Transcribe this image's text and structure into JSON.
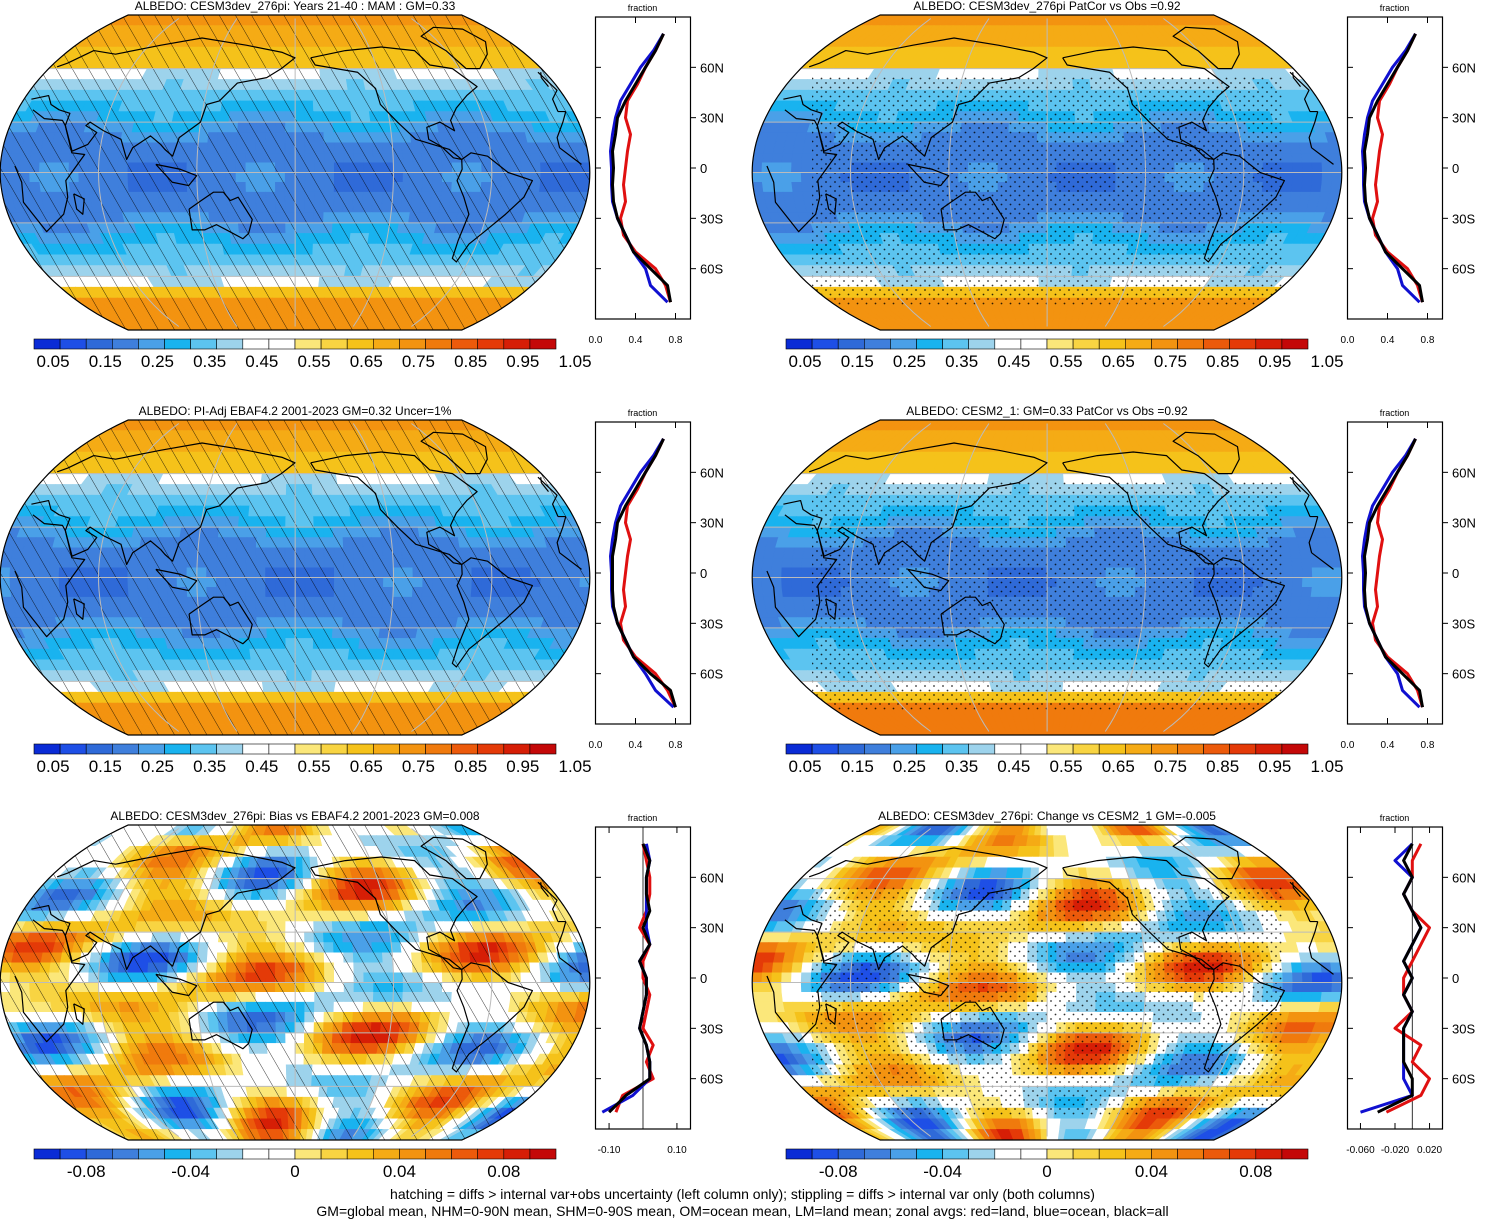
{
  "variable": "ALBEDO",
  "colors": {
    "abs": [
      "#0a2bd6",
      "#1e4fe6",
      "#2f6ad8",
      "#3f7fdc",
      "#4aa0e8",
      "#19b3ef",
      "#5cc4f0",
      "#9dd3ec",
      "#ffffff",
      "#ffffff",
      "#fbe77a",
      "#f8d442",
      "#f5c21a",
      "#f5ab15",
      "#f39310",
      "#f07a0d",
      "#ec5a0b",
      "#e43a08",
      "#d61e06",
      "#c40808"
    ],
    "diff": [
      "#0a2bd6",
      "#1e4fe6",
      "#2f6ad8",
      "#3f7fdc",
      "#4aa0e8",
      "#19b3ef",
      "#5cc4f0",
      "#9dd3ec",
      "#ffffff",
      "#ffffff",
      "#fbe77a",
      "#f8d442",
      "#f5c21a",
      "#f5ab15",
      "#f39310",
      "#f07a0d",
      "#ec5a0b",
      "#e43a08",
      "#d61e06",
      "#c40808"
    ],
    "land_line": "#e01010",
    "ocean_line": "#1010d0",
    "all_line": "#000000"
  },
  "panels": [
    {
      "title": "ALBEDO: CESM3dev_276pi: Years 21-40 : MAM : GM=0.33",
      "overlay": "hatch",
      "kind": "abs",
      "cb_labels": [
        "0.05",
        "0.15",
        "0.25",
        "0.35",
        "0.45",
        "0.55",
        "0.65",
        "0.75",
        "0.85",
        "0.95",
        "1.05"
      ],
      "zonal_title": "fraction",
      "zonal_xticks": [
        "0.0",
        "0.4",
        "0.8"
      ],
      "lat_labels": [
        "60N",
        "30N",
        "0",
        "30S",
        "60S"
      ]
    },
    {
      "title": "ALBEDO: CESM3dev_276pi PatCor vs Obs =0.92",
      "overlay": "stipple",
      "kind": "abs",
      "cb_labels": [
        "0.05",
        "0.15",
        "0.25",
        "0.35",
        "0.45",
        "0.55",
        "0.65",
        "0.75",
        "0.85",
        "0.95",
        "1.05"
      ],
      "zonal_title": "fraction",
      "zonal_xticks": [
        "0.0",
        "0.4",
        "0.8"
      ],
      "lat_labels": [
        "60N",
        "30N",
        "0",
        "30S",
        "60S"
      ]
    },
    {
      "title": "ALBEDO: PI-Adj EBAF4.2 2001-2023 GM=0.32 Uncer=1%",
      "overlay": "hatch",
      "kind": "abs",
      "cb_labels": [
        "0.05",
        "0.15",
        "0.25",
        "0.35",
        "0.45",
        "0.55",
        "0.65",
        "0.75",
        "0.85",
        "0.95",
        "1.05"
      ],
      "zonal_title": "fraction",
      "zonal_xticks": [
        "0.0",
        "0.4",
        "0.8"
      ],
      "lat_labels": [
        "60N",
        "30N",
        "0",
        "30S",
        "60S"
      ]
    },
    {
      "title": "ALBEDO: CESM2_1: GM=0.33 PatCor vs Obs =0.92",
      "overlay": "stipple",
      "kind": "abs",
      "cb_labels": [
        "0.05",
        "0.15",
        "0.25",
        "0.35",
        "0.45",
        "0.55",
        "0.65",
        "0.75",
        "0.85",
        "0.95",
        "1.05"
      ],
      "zonal_title": "fraction",
      "zonal_xticks": [
        "0.0",
        "0.4",
        "0.8"
      ],
      "lat_labels": [
        "60N",
        "30N",
        "0",
        "30S",
        "60S"
      ]
    },
    {
      "title": "ALBEDO: CESM3dev_276pi: Bias vs EBAF4.2 2001-2023 GM=0.008",
      "overlay": "hatch",
      "kind": "diff",
      "cb_labels": [
        "-0.08",
        "-0.04",
        "0",
        "0.04",
        "0.08"
      ],
      "zonal_title": "fraction",
      "zonal_xticks": [
        "-0.10",
        "0.10"
      ],
      "lat_labels": [
        "60N",
        "30N",
        "0",
        "30S",
        "60S"
      ]
    },
    {
      "title": "ALBEDO: CESM3dev_276pi: Change vs CESM2_1 GM=-0.005",
      "overlay": "stipple",
      "kind": "diff",
      "cb_labels": [
        "-0.08",
        "-0.04",
        "0",
        "0.04",
        "0.08"
      ],
      "zonal_title": "fraction",
      "zonal_xticks": [
        "-0.060",
        "-0.020",
        "0.020"
      ],
      "lat_labels": [
        "60N",
        "30N",
        "0",
        "30S",
        "60S"
      ]
    }
  ],
  "chart_data": [
    {
      "type": "heatmap",
      "title": "ALBEDO: CESM3dev_276pi: Years 21-40 : MAM : GM=0.33",
      "colorbar": [
        0.05,
        0.15,
        0.25,
        0.35,
        0.45,
        0.55,
        0.65,
        0.75,
        0.85,
        0.95,
        1.05
      ],
      "zonal_mean": {
        "lat": [
          -80,
          -70,
          -60,
          -50,
          -40,
          -30,
          -20,
          -10,
          0,
          10,
          20,
          30,
          40,
          50,
          60,
          70,
          80
        ],
        "all": [
          0.75,
          0.72,
          0.55,
          0.38,
          0.3,
          0.22,
          0.18,
          0.17,
          0.18,
          0.17,
          0.2,
          0.22,
          0.3,
          0.4,
          0.5,
          0.6,
          0.68
        ],
        "land": [
          0.75,
          0.7,
          0.6,
          0.4,
          0.28,
          0.25,
          0.3,
          0.28,
          0.3,
          0.32,
          0.35,
          0.3,
          0.32,
          0.42,
          0.5,
          0.6,
          0.68
        ],
        "ocean": [
          0.72,
          0.55,
          0.5,
          0.38,
          0.3,
          0.22,
          0.17,
          0.16,
          0.16,
          0.15,
          0.17,
          0.2,
          0.25,
          0.35,
          0.45,
          0.58,
          0.68
        ]
      }
    },
    {
      "type": "heatmap",
      "title": "ALBEDO: CESM3dev_276pi PatCor vs Obs =0.92",
      "colorbar": [
        0.05,
        0.15,
        0.25,
        0.35,
        0.45,
        0.55,
        0.65,
        0.75,
        0.85,
        0.95,
        1.05
      ],
      "zonal_mean": {
        "lat": [
          -80,
          -70,
          -60,
          -50,
          -40,
          -30,
          -20,
          -10,
          0,
          10,
          20,
          30,
          40,
          50,
          60,
          70,
          80
        ],
        "all": [
          0.75,
          0.72,
          0.55,
          0.38,
          0.3,
          0.22,
          0.18,
          0.17,
          0.18,
          0.17,
          0.2,
          0.22,
          0.3,
          0.4,
          0.5,
          0.6,
          0.68
        ],
        "land": [
          0.75,
          0.7,
          0.6,
          0.4,
          0.28,
          0.25,
          0.3,
          0.28,
          0.3,
          0.32,
          0.35,
          0.3,
          0.32,
          0.42,
          0.5,
          0.6,
          0.68
        ],
        "ocean": [
          0.72,
          0.55,
          0.5,
          0.38,
          0.3,
          0.22,
          0.17,
          0.16,
          0.16,
          0.15,
          0.17,
          0.2,
          0.25,
          0.35,
          0.45,
          0.58,
          0.68
        ]
      }
    },
    {
      "type": "heatmap",
      "title": "ALBEDO: PI-Adj EBAF4.2 2001-2023 GM=0.32 Uncer=1%",
      "colorbar": [
        0.05,
        0.15,
        0.25,
        0.35,
        0.45,
        0.55,
        0.65,
        0.75,
        0.85,
        0.95,
        1.05
      ],
      "zonal_mean": {
        "lat": [
          -80,
          -70,
          -60,
          -50,
          -40,
          -30,
          -20,
          -10,
          0,
          10,
          20,
          30,
          40,
          50,
          60,
          70,
          80
        ],
        "all": [
          0.8,
          0.75,
          0.55,
          0.38,
          0.3,
          0.22,
          0.18,
          0.17,
          0.17,
          0.17,
          0.2,
          0.22,
          0.3,
          0.4,
          0.5,
          0.6,
          0.68
        ],
        "land": [
          0.8,
          0.72,
          0.6,
          0.4,
          0.28,
          0.25,
          0.3,
          0.28,
          0.3,
          0.32,
          0.35,
          0.3,
          0.32,
          0.42,
          0.5,
          0.6,
          0.68
        ],
        "ocean": [
          0.78,
          0.6,
          0.5,
          0.38,
          0.3,
          0.22,
          0.17,
          0.16,
          0.16,
          0.15,
          0.17,
          0.2,
          0.25,
          0.35,
          0.45,
          0.58,
          0.68
        ]
      }
    },
    {
      "type": "heatmap",
      "title": "ALBEDO: CESM2_1: GM=0.33 PatCor vs Obs =0.92",
      "colorbar": [
        0.05,
        0.15,
        0.25,
        0.35,
        0.45,
        0.55,
        0.65,
        0.75,
        0.85,
        0.95,
        1.05
      ],
      "zonal_mean": {
        "lat": [
          -80,
          -70,
          -60,
          -50,
          -40,
          -30,
          -20,
          -10,
          0,
          10,
          20,
          30,
          40,
          50,
          60,
          70,
          80
        ],
        "all": [
          0.75,
          0.72,
          0.55,
          0.38,
          0.3,
          0.22,
          0.18,
          0.17,
          0.18,
          0.17,
          0.2,
          0.22,
          0.3,
          0.4,
          0.5,
          0.6,
          0.68
        ],
        "land": [
          0.75,
          0.7,
          0.6,
          0.4,
          0.28,
          0.25,
          0.3,
          0.28,
          0.3,
          0.32,
          0.35,
          0.3,
          0.32,
          0.42,
          0.5,
          0.6,
          0.68
        ],
        "ocean": [
          0.72,
          0.55,
          0.5,
          0.38,
          0.3,
          0.22,
          0.17,
          0.16,
          0.16,
          0.15,
          0.17,
          0.2,
          0.25,
          0.35,
          0.45,
          0.58,
          0.68
        ]
      }
    },
    {
      "type": "heatmap",
      "title": "ALBEDO: CESM3dev_276pi: Bias vs EBAF4.2 2001-2023 GM=0.008",
      "colorbar": [
        -0.08,
        -0.04,
        0,
        0.04,
        0.08
      ],
      "zonal_mean": {
        "lat": [
          -80,
          -70,
          -60,
          -50,
          -40,
          -30,
          -20,
          -10,
          0,
          10,
          20,
          30,
          40,
          50,
          60,
          70,
          80
        ],
        "all": [
          -0.1,
          -0.05,
          0.02,
          0.02,
          0.01,
          -0.01,
          0.0,
          0.01,
          0.01,
          -0.01,
          0.02,
          0.0,
          0.02,
          0.01,
          0.01,
          0.02,
          0.0
        ],
        "land": [
          -0.08,
          -0.06,
          0.03,
          0.01,
          0.03,
          0.0,
          0.01,
          0.02,
          0.0,
          0.0,
          0.02,
          -0.01,
          0.01,
          0.02,
          0.02,
          0.01,
          0.0
        ],
        "ocean": [
          -0.12,
          -0.03,
          0.02,
          0.02,
          0.01,
          -0.01,
          0.0,
          0.01,
          0.01,
          -0.01,
          0.02,
          0.01,
          0.01,
          0.01,
          0.01,
          0.02,
          0.01
        ]
      }
    },
    {
      "type": "heatmap",
      "title": "ALBEDO: CESM3dev_276pi: Change vs CESM2_1 GM=-0.005",
      "colorbar": [
        -0.08,
        -0.04,
        0,
        0.04,
        0.08
      ],
      "zonal_mean": {
        "lat": [
          -80,
          -70,
          -60,
          -50,
          -40,
          -30,
          -20,
          -10,
          0,
          10,
          20,
          30,
          40,
          50,
          60,
          70,
          80
        ],
        "all": [
          -0.04,
          0.0,
          0.0,
          -0.01,
          -0.01,
          -0.01,
          0.0,
          -0.01,
          0.0,
          -0.01,
          0.0,
          0.01,
          0.0,
          -0.01,
          0.0,
          -0.01,
          0.0
        ],
        "land": [
          -0.03,
          0.01,
          0.02,
          0.0,
          0.01,
          -0.02,
          0.0,
          -0.01,
          -0.01,
          0.0,
          0.01,
          0.02,
          0.0,
          -0.01,
          0.0,
          0.0,
          0.01
        ],
        "ocean": [
          -0.06,
          0.0,
          -0.01,
          -0.01,
          -0.01,
          -0.01,
          0.0,
          -0.01,
          0.0,
          -0.01,
          0.0,
          0.01,
          0.0,
          -0.01,
          0.0,
          -0.02,
          0.0
        ]
      }
    }
  ],
  "footer": {
    "line1": "hatching = diffs > internal var+obs uncertainty (left column only); stippling = diffs > internal var only (both columns)",
    "line2": "GM=global mean, NHM=0-90N mean, SHM=0-90S mean, OM=ocean mean, LM=land mean; zonal avgs: red=land, blue=ocean, black=all"
  }
}
